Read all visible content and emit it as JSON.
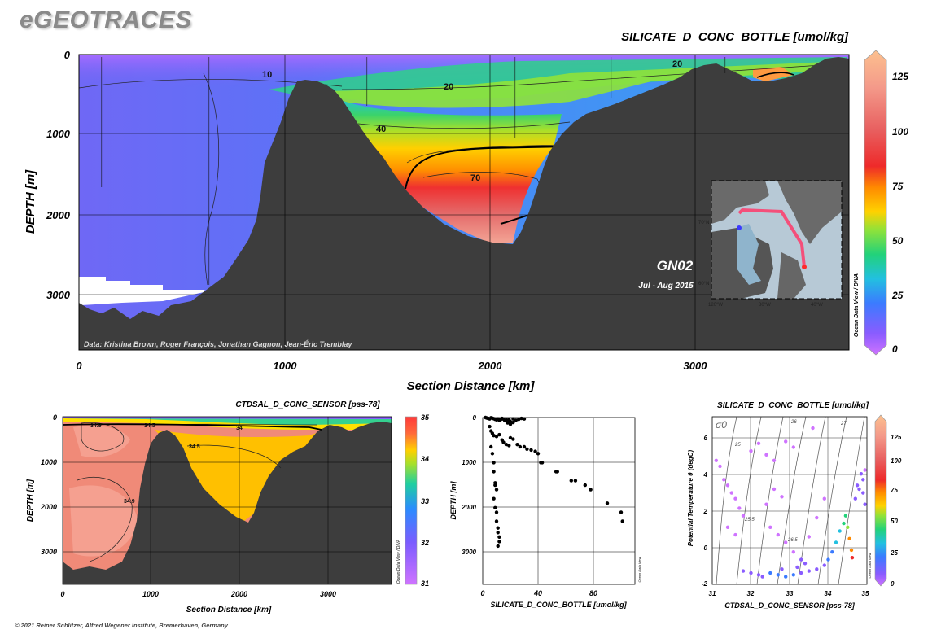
{
  "brand": "eGEOTRACES",
  "footer": "© 2021 Reiner Schlitzer, Alfred Wegener Institute, Bremerhaven, Germany",
  "colors": {
    "land": "#3d3d3d",
    "background": "#ffffff"
  },
  "chart_data": [
    {
      "type": "heatmap",
      "title": "SILICATE_D_CONC_BOTTLE [umol/kg]",
      "xlabel": "Section Distance [km]",
      "ylabel": "DEPTH [m]",
      "x_ticks": [
        0,
        1000,
        2000,
        3000
      ],
      "y_ticks": [
        0,
        1000,
        2000,
        3000
      ],
      "xlim": [
        0,
        3750
      ],
      "ylim": [
        3700,
        0
      ],
      "contour_labels": [
        "10",
        "20",
        "40",
        "70",
        "20"
      ],
      "colorbar": {
        "ticks": [
          "0",
          "25",
          "50",
          "75",
          "100",
          "125"
        ],
        "range": [
          0,
          135
        ],
        "label": "Ocean Data View / DIVA"
      },
      "credit": "Data: Kristina Brown, Roger François, Jonathan Gagnon, Jean-Éric Tremblay",
      "section_id": "GN02",
      "period": "Jul - Aug 2015",
      "inset_map": {
        "lat_labels": [
          "70°N",
          "60°N"
        ],
        "lon_labels": [
          "120°W",
          "80°W",
          "40°W"
        ]
      }
    },
    {
      "type": "heatmap",
      "title": "CTDSAL_D_CONC_SENSOR [pss-78]",
      "xlabel": "Section Distance [km]",
      "ylabel": "DEPTH [m]",
      "x_ticks": [
        0,
        1000,
        2000,
        3000
      ],
      "y_ticks": [
        0,
        1000,
        2000,
        3000
      ],
      "contour_labels": [
        "34.9",
        "34.5",
        "34",
        "34.5",
        "34.9"
      ],
      "colorbar": {
        "ticks": [
          "35",
          "34",
          "33",
          "32",
          "31"
        ],
        "range": [
          31,
          35
        ],
        "label": "Ocean Data View / DIVA"
      }
    },
    {
      "type": "scatter",
      "xlabel": "SILICATE_D_CONC_BOTTLE [umol/kg]",
      "ylabel": "DEPTH [m]",
      "x_ticks": [
        0,
        40,
        80
      ],
      "y_ticks": [
        0,
        1000,
        2000,
        3000
      ],
      "xlim": [
        0,
        110
      ],
      "ylim": [
        3700,
        0
      ],
      "label": "Ocean Data View",
      "points": [
        [
          2,
          0
        ],
        [
          3,
          10
        ],
        [
          4,
          20
        ],
        [
          5,
          30
        ],
        [
          6,
          5
        ],
        [
          7,
          15
        ],
        [
          8,
          25
        ],
        [
          9,
          40
        ],
        [
          10,
          50
        ],
        [
          11,
          30
        ],
        [
          12,
          60
        ],
        [
          13,
          45
        ],
        [
          14,
          20
        ],
        [
          15,
          35
        ],
        [
          16,
          70
        ],
        [
          17,
          55
        ],
        [
          18,
          80
        ],
        [
          19,
          40
        ],
        [
          20,
          90
        ],
        [
          22,
          30
        ],
        [
          24,
          60
        ],
        [
          26,
          40
        ],
        [
          28,
          20
        ],
        [
          30,
          30
        ],
        [
          18,
          120
        ],
        [
          20,
          150
        ],
        [
          22,
          110
        ],
        [
          5,
          200
        ],
        [
          6,
          300
        ],
        [
          7,
          350
        ],
        [
          8,
          400
        ],
        [
          10,
          420
        ],
        [
          12,
          380
        ],
        [
          14,
          500
        ],
        [
          15,
          550
        ],
        [
          17,
          600
        ],
        [
          19,
          620
        ],
        [
          20,
          450
        ],
        [
          22,
          480
        ],
        [
          25,
          600
        ],
        [
          27,
          650
        ],
        [
          30,
          650
        ],
        [
          32,
          700
        ],
        [
          35,
          720
        ],
        [
          38,
          750
        ],
        [
          40,
          800
        ],
        [
          42,
          1000
        ],
        [
          43,
          1000
        ],
        [
          6,
          650
        ],
        [
          7,
          800
        ],
        [
          8,
          1000
        ],
        [
          8,
          1200
        ],
        [
          9,
          1450
        ],
        [
          9,
          1500
        ],
        [
          10,
          1600
        ],
        [
          8,
          1800
        ],
        [
          9,
          2000
        ],
        [
          10,
          2100
        ],
        [
          10,
          2300
        ],
        [
          11,
          2450
        ],
        [
          11,
          2550
        ],
        [
          12,
          2650
        ],
        [
          12,
          2750
        ],
        [
          11,
          2850
        ],
        [
          53,
          1200
        ],
        [
          54,
          1200
        ],
        [
          64,
          1400
        ],
        [
          67,
          1400
        ],
        [
          74,
          1500
        ],
        [
          78,
          1600
        ],
        [
          90,
          1900
        ],
        [
          100,
          2100
        ],
        [
          101,
          2300
        ]
      ]
    },
    {
      "type": "scatter",
      "title": "SILICATE_D_CONC_BOTTLE [umol/kg]",
      "xlabel": "CTDSAL_D_CONC_SENSOR [pss-78]",
      "ylabel": "Potential Temperature θ (degC)",
      "x_ticks": [
        31,
        32,
        33,
        34,
        35
      ],
      "y_ticks": [
        -2,
        0,
        2,
        4,
        6
      ],
      "xlim": [
        31,
        35
      ],
      "ylim": [
        -2,
        6.8
      ],
      "isopycnal_label": "σ0",
      "isopycnal_labels": [
        "25",
        "26",
        "27",
        "25.5",
        "26.5"
      ],
      "colorbar": {
        "ticks": [
          "125",
          "100",
          "75",
          "50",
          "25",
          "0"
        ],
        "range": [
          0,
          135
        ],
        "label": "Ocean Data View"
      },
      "points": [
        [
          31.1,
          4.5,
          5
        ],
        [
          31.2,
          4.2,
          5
        ],
        [
          31.3,
          3.5,
          5
        ],
        [
          31.4,
          3.2,
          5
        ],
        [
          31.5,
          2.8,
          5
        ],
        [
          31.6,
          2.5,
          5
        ],
        [
          31.7,
          2.0,
          5
        ],
        [
          31.8,
          1.6,
          5
        ],
        [
          31.4,
          1.0,
          5
        ],
        [
          31.6,
          0.6,
          5
        ],
        [
          32.0,
          5.0,
          5
        ],
        [
          32.2,
          5.4,
          5
        ],
        [
          32.4,
          4.8,
          5
        ],
        [
          32.6,
          4.5,
          5
        ],
        [
          32.9,
          5.5,
          5
        ],
        [
          33.1,
          5.2,
          5
        ],
        [
          33.6,
          6.2,
          5
        ],
        [
          31.8,
          -1.3,
          10
        ],
        [
          32.0,
          -1.4,
          15
        ],
        [
          32.2,
          -1.5,
          20
        ],
        [
          32.3,
          -1.6,
          18
        ],
        [
          32.5,
          -1.4,
          22
        ],
        [
          32.7,
          -1.5,
          25
        ],
        [
          32.9,
          -1.6,
          28
        ],
        [
          33.1,
          -1.5,
          24
        ],
        [
          33.3,
          -1.4,
          20
        ],
        [
          33.5,
          -1.3,
          18
        ],
        [
          33.7,
          -1.2,
          16
        ],
        [
          33.9,
          -1.0,
          20
        ],
        [
          34.0,
          -0.7,
          25
        ],
        [
          34.1,
          -0.3,
          30
        ],
        [
          34.2,
          0.2,
          35
        ],
        [
          34.3,
          0.8,
          40
        ],
        [
          34.4,
          1.2,
          45
        ],
        [
          34.45,
          1.6,
          50
        ],
        [
          34.5,
          1.0,
          60
        ],
        [
          34.55,
          0.4,
          75
        ],
        [
          34.6,
          -0.2,
          80
        ],
        [
          34.62,
          -0.6,
          85
        ],
        [
          34.7,
          2.5,
          15
        ],
        [
          34.8,
          3.0,
          12
        ],
        [
          34.9,
          3.5,
          10
        ],
        [
          34.95,
          4.0,
          8
        ],
        [
          34.85,
          3.8,
          10
        ],
        [
          34.75,
          3.2,
          12
        ],
        [
          34.9,
          2.8,
          14
        ],
        [
          34.95,
          2.2,
          16
        ],
        [
          32.5,
          1.0,
          6
        ],
        [
          32.7,
          0.6,
          6
        ],
        [
          32.9,
          0.2,
          6
        ],
        [
          33.1,
          -0.3,
          8
        ],
        [
          33.3,
          -0.7,
          10
        ],
        [
          32.4,
          2.2,
          5
        ],
        [
          32.6,
          3.0,
          5
        ],
        [
          32.8,
          2.6,
          5
        ],
        [
          33.5,
          0.5,
          6
        ],
        [
          33.7,
          1.5,
          6
        ],
        [
          33.9,
          2.5,
          6
        ],
        [
          33.4,
          -0.9,
          14
        ],
        [
          33.2,
          -1.1,
          16
        ],
        [
          32.8,
          -1.2,
          14
        ]
      ]
    }
  ]
}
